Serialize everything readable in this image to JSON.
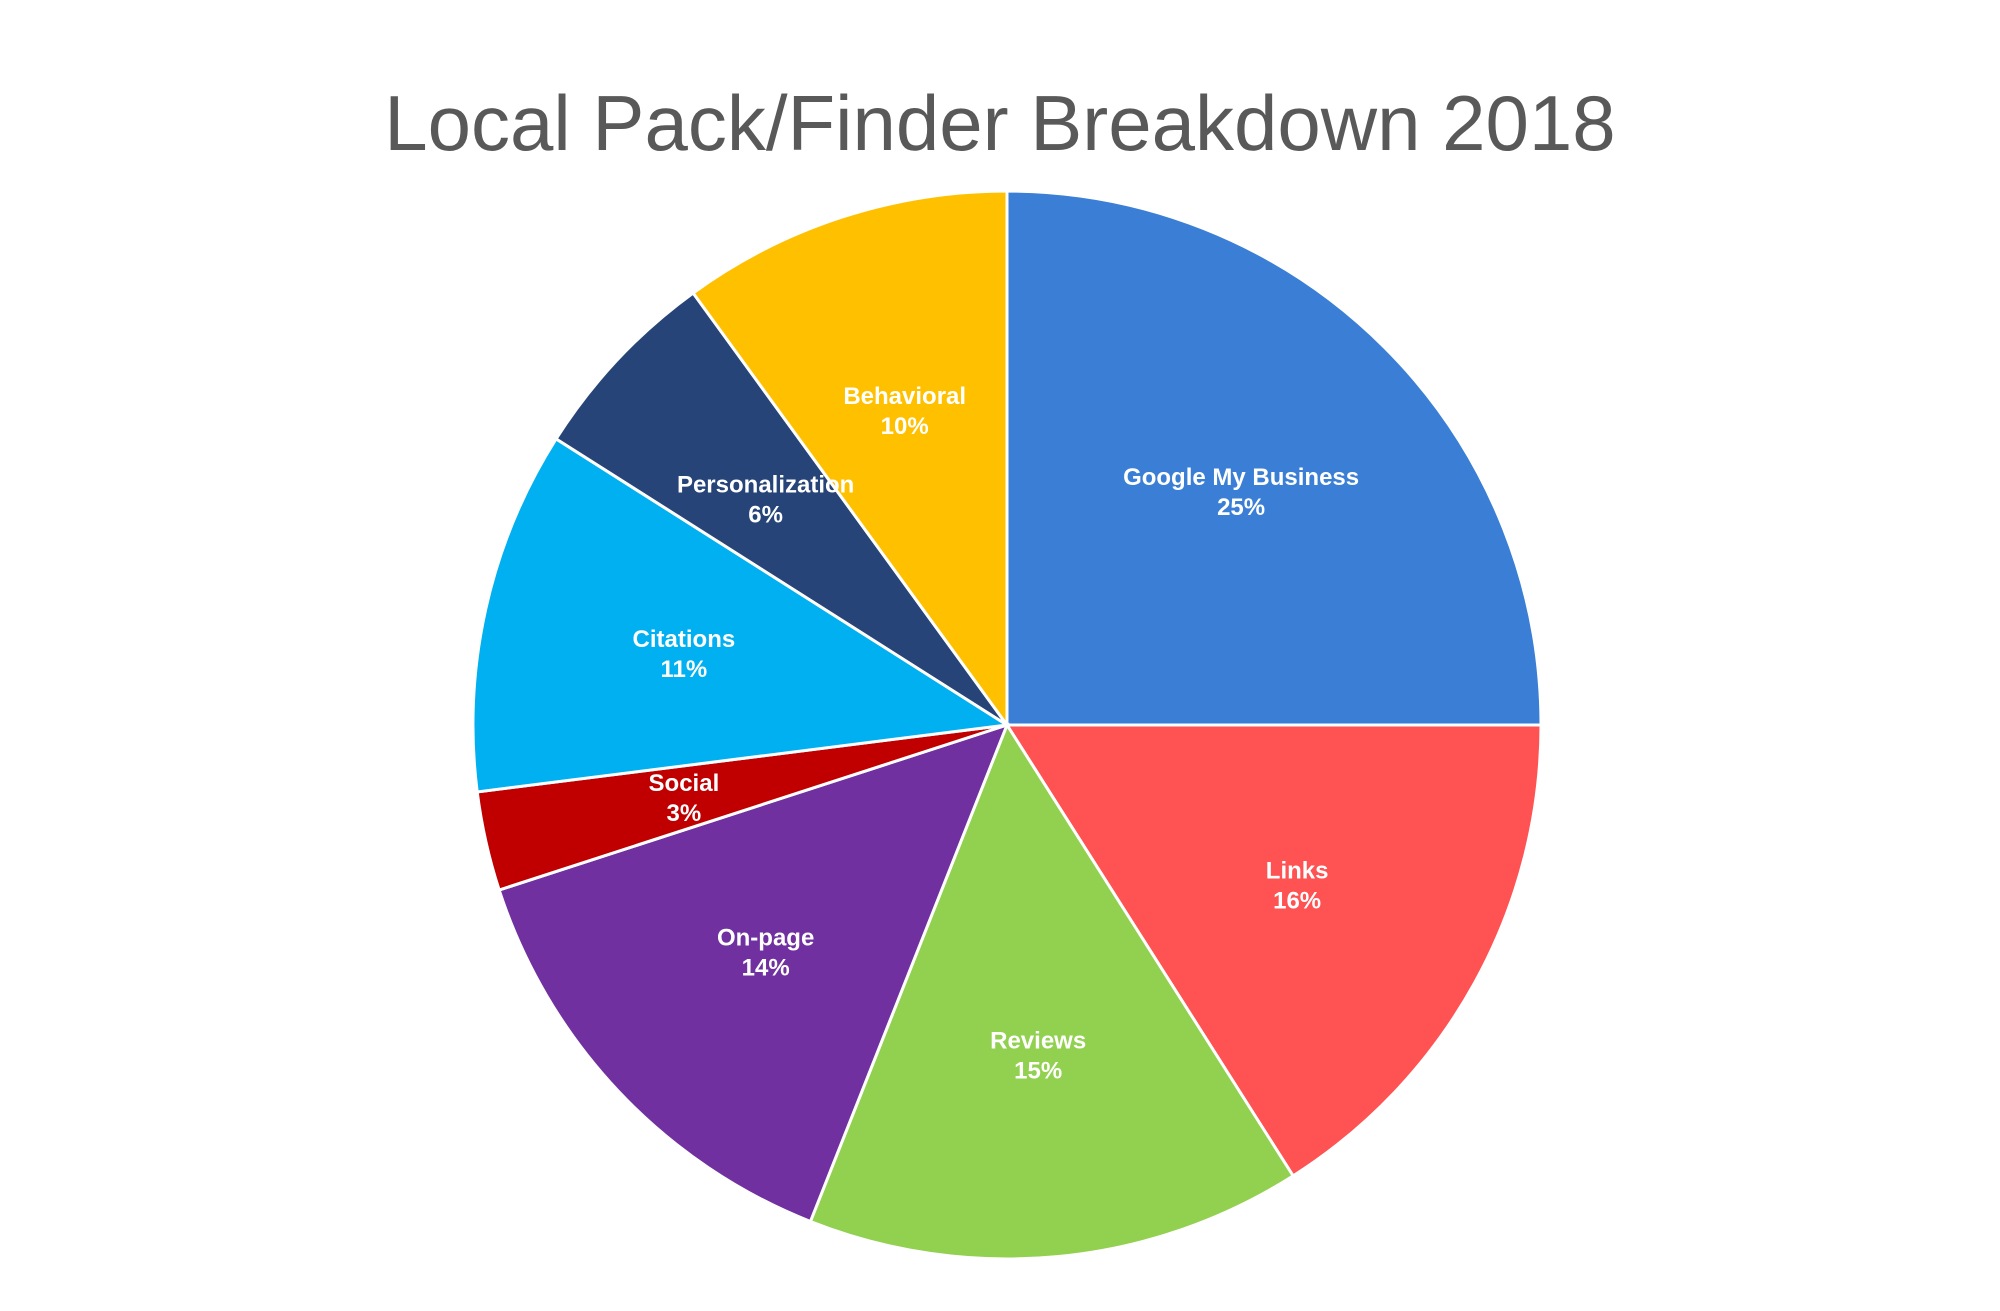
{
  "chart_data": {
    "type": "pie",
    "title": "Local Pack/Finder Breakdown 2018",
    "slices": [
      {
        "label": "Google My Business",
        "value": 25,
        "display": "25%",
        "color": "#3A7FD5"
      },
      {
        "label": "Links",
        "value": 16,
        "display": "16%",
        "color": "#FF5252"
      },
      {
        "label": "Reviews",
        "value": 15,
        "display": "15%",
        "color": "#92D050"
      },
      {
        "label": "On-page",
        "value": 14,
        "display": "14%",
        "color": "#7030A0"
      },
      {
        "label": "Social",
        "value": 3,
        "display": "3%",
        "color": "#C00000"
      },
      {
        "label": "Citations",
        "value": 11,
        "display": "11%",
        "color": "#00B0F0"
      },
      {
        "label": "Personalization",
        "value": 6,
        "display": "6%",
        "color": "#264478"
      },
      {
        "label": "Behavioral",
        "value": 10,
        "display": "10%",
        "color": "#FFC000"
      }
    ],
    "start_angle": "top",
    "direction": "clockwise",
    "legend": "none"
  }
}
